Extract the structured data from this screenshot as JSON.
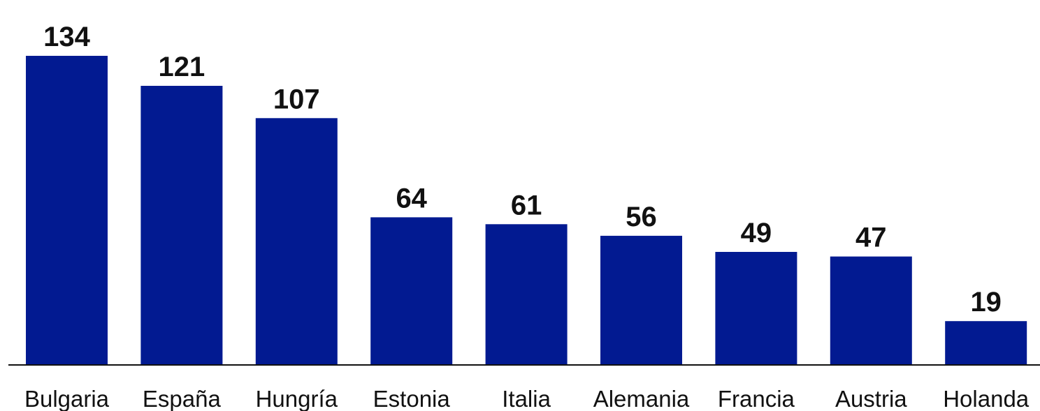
{
  "chart_data": {
    "type": "bar",
    "title": "",
    "xlabel": "",
    "ylabel": "",
    "categories": [
      "Bulgaria",
      "España",
      "Hungría",
      "Estonia",
      "Italia",
      "Alemania",
      "Francia",
      "Austria",
      "Holanda"
    ],
    "values": [
      134,
      121,
      107,
      64,
      61,
      56,
      49,
      47,
      19
    ],
    "value_labels": [
      "134",
      "121",
      "107",
      "64",
      "61",
      "56",
      "49",
      "47",
      "19"
    ],
    "ylim": [
      0,
      134
    ],
    "grid": false,
    "legend": "none",
    "colors": {
      "bar": "#021a91",
      "axis": "#111111",
      "text": "#111111"
    }
  }
}
